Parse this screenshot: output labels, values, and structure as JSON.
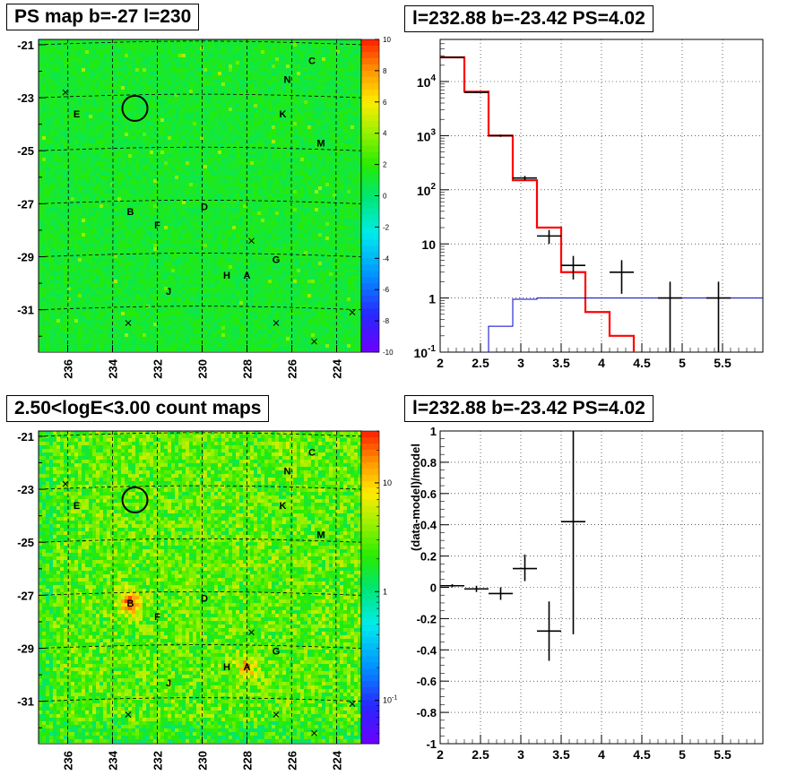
{
  "panels": {
    "ps_map": {
      "title": "PS map b=-27 l=230",
      "lat_ticks": [
        "-21",
        "-23",
        "-25",
        "-27",
        "-29",
        "-31"
      ],
      "lon_ticks": [
        "236",
        "234",
        "232",
        "230",
        "228",
        "226",
        "224"
      ],
      "colorbar_ticks": [
        "10",
        "8",
        "6",
        "4",
        "2",
        "0",
        "-2",
        "-4",
        "-6",
        "-8",
        "-10"
      ],
      "colorbar_range": [
        -10,
        10
      ],
      "sources": [
        {
          "label": "C",
          "l": 225.1,
          "b": -21.6
        },
        {
          "label": "N",
          "l": 226.2,
          "b": -22.3
        },
        {
          "label": "K",
          "l": 226.4,
          "b": -23.6
        },
        {
          "label": "M",
          "l": 224.7,
          "b": -24.7
        },
        {
          "label": "E",
          "l": 235.6,
          "b": -23.6
        },
        {
          "label": "B",
          "l": 233.2,
          "b": -27.3
        },
        {
          "label": "F",
          "l": 232.0,
          "b": -27.8
        },
        {
          "label": "D",
          "l": 229.9,
          "b": -27.1
        },
        {
          "label": "G",
          "l": 226.7,
          "b": -29.1
        },
        {
          "label": "H",
          "l": 228.9,
          "b": -29.7
        },
        {
          "label": "A",
          "l": 228.0,
          "b": -29.7
        },
        {
          "label": "J",
          "l": 231.5,
          "b": -30.3
        }
      ],
      "crosses": [
        {
          "l": 236.1,
          "b": -22.8
        },
        {
          "l": 227.8,
          "b": -28.4
        },
        {
          "l": 226.7,
          "b": -31.5
        },
        {
          "l": 233.3,
          "b": -31.5
        },
        {
          "l": 223.3,
          "b": -31.1
        },
        {
          "l": 225.0,
          "b": -32.2
        }
      ],
      "circle": {
        "l": 233.0,
        "b": -23.4
      }
    },
    "count_map": {
      "title": "2.50<logE<3.00 count maps",
      "lat_ticks": [
        "-21",
        "-23",
        "-25",
        "-27",
        "-29",
        "-31"
      ],
      "lon_ticks": [
        "236",
        "234",
        "232",
        "230",
        "228",
        "226",
        "224"
      ],
      "colorbar_labels": [
        {
          "base": "10",
          "exp": "",
          "value": 10
        },
        {
          "base": "1",
          "exp": "",
          "value": 1
        },
        {
          "base": "10",
          "exp": "-1",
          "value": 0.1
        }
      ],
      "colorbar_range": [
        0.04,
        30
      ]
    },
    "spectrum": {
      "title": "l=232.88 b=-23.42 PS=4.02"
    },
    "residual": {
      "title": "l=232.88 b=-23.42 PS=4.02"
    }
  },
  "chart_data": [
    {
      "type": "heatmap",
      "title": "PS map b=-27 l=230",
      "xlabel": "",
      "ylabel": "",
      "xlim": [
        237.3,
        222.9
      ],
      "ylim": [
        -32.6,
        -20.8
      ],
      "x_ticks": [
        236,
        234,
        232,
        230,
        228,
        226,
        224
      ],
      "y_ticks": [
        -21,
        -23,
        -25,
        -27,
        -29,
        -31
      ],
      "z_range": [
        -10,
        10
      ]
    },
    {
      "type": "line",
      "title": "l=232.88 b=-23.42 PS=4.02",
      "xlim": [
        2,
        6
      ],
      "ylim": [
        0.1,
        60000
      ],
      "yscale": "log",
      "x_ticks": [
        "2",
        "2.5",
        "3",
        "3.5",
        "4",
        "4.5",
        "5",
        "5.5"
      ],
      "y_ticks": [
        {
          "base": "10",
          "exp": "-1",
          "value": 0.1
        },
        {
          "base": "1",
          "exp": "",
          "value": 1
        },
        {
          "base": "10",
          "exp": "",
          "value": 10
        },
        {
          "base": "10",
          "exp": "2",
          "value": 100
        },
        {
          "base": "10",
          "exp": "3",
          "value": 1000
        },
        {
          "base": "10",
          "exp": "4",
          "value": 10000
        }
      ],
      "grid": true,
      "series": [
        {
          "color": "#ff0000",
          "kind": "step",
          "edges": [
            2,
            2.3,
            2.6,
            2.9,
            3.2,
            3.5,
            3.8,
            4.1,
            4.4
          ],
          "values": [
            28000,
            6500,
            1000,
            150,
            20,
            3,
            0.55,
            0.2,
            0.05
          ]
        },
        {
          "color": "#0000cc",
          "kind": "step",
          "edges": [
            2,
            2.3,
            2.6,
            2.9,
            3.2,
            3.5,
            3.8,
            4.1,
            4.4,
            4.7,
            5.0,
            5.3,
            5.6,
            6.0
          ],
          "values": [
            0.05,
            0.1,
            0.3,
            0.95,
            1.0,
            1.0,
            1.0,
            1.0,
            1.0,
            1.0,
            1.0,
            1.0,
            1.0,
            1.0
          ]
        },
        {
          "color": "#000000",
          "kind": "errorbars",
          "points": [
            {
              "x": 2.15,
              "xerr": 0.15,
              "y": 28000,
              "ylo": 27500,
              "yhi": 28500
            },
            {
              "x": 2.45,
              "xerr": 0.15,
              "y": 6300,
              "ylo": 6100,
              "yhi": 6500
            },
            {
              "x": 2.75,
              "xerr": 0.15,
              "y": 1000,
              "ylo": 950,
              "yhi": 1050
            },
            {
              "x": 3.05,
              "xerr": 0.15,
              "y": 165,
              "ylo": 150,
              "yhi": 180
            },
            {
              "x": 3.35,
              "xerr": 0.15,
              "y": 14,
              "ylo": 10,
              "yhi": 18
            },
            {
              "x": 3.65,
              "xerr": 0.15,
              "y": 4,
              "ylo": 2.2,
              "yhi": 6
            },
            {
              "x": 4.25,
              "xerr": 0.15,
              "y": 3,
              "ylo": 1.2,
              "yhi": 5
            },
            {
              "x": 4.85,
              "xerr": 0.15,
              "y": 1.0,
              "ylo": 0.05,
              "yhi": 2.0
            },
            {
              "x": 5.45,
              "xerr": 0.15,
              "y": 1.0,
              "ylo": 0.05,
              "yhi": 2.0
            }
          ]
        }
      ]
    },
    {
      "type": "heatmap",
      "title": "2.50<logE<3.00 count maps",
      "xlim": [
        237.3,
        222.9
      ],
      "ylim": [
        -32.6,
        -20.8
      ],
      "x_ticks": [
        236,
        234,
        232,
        230,
        228,
        226,
        224
      ],
      "y_ticks": [
        -21,
        -23,
        -25,
        -27,
        -29,
        -31
      ],
      "z_range": [
        0.04,
        30
      ],
      "zscale": "log"
    },
    {
      "type": "scatter",
      "title": "l=232.88 b=-23.42 PS=4.02",
      "ylabel": "(data-model)/model",
      "xlim": [
        2,
        6
      ],
      "ylim": [
        -1,
        1
      ],
      "x_ticks": [
        "2",
        "2.5",
        "3",
        "3.5",
        "4",
        "4.5",
        "5",
        "5.5"
      ],
      "y_ticks": [
        "1",
        "0.8",
        "0.6",
        "0.4",
        "0.2",
        "0",
        "-0.2",
        "-0.4",
        "-0.6",
        "-0.8",
        "-1"
      ],
      "grid": true,
      "points": [
        {
          "x": 2.15,
          "xerr": 0.15,
          "y": 0.01,
          "ylo": 0.0,
          "yhi": 0.02
        },
        {
          "x": 2.45,
          "xerr": 0.15,
          "y": -0.01,
          "ylo": -0.03,
          "yhi": 0.01
        },
        {
          "x": 2.75,
          "xerr": 0.15,
          "y": -0.04,
          "ylo": -0.08,
          "yhi": 0.0
        },
        {
          "x": 3.05,
          "xerr": 0.15,
          "y": 0.12,
          "ylo": 0.04,
          "yhi": 0.21
        },
        {
          "x": 3.35,
          "xerr": 0.15,
          "y": -0.28,
          "ylo": -0.47,
          "yhi": -0.09
        },
        {
          "x": 3.65,
          "xerr": 0.15,
          "y": 0.42,
          "ylo": -0.3,
          "yhi": 1.0
        }
      ]
    }
  ]
}
